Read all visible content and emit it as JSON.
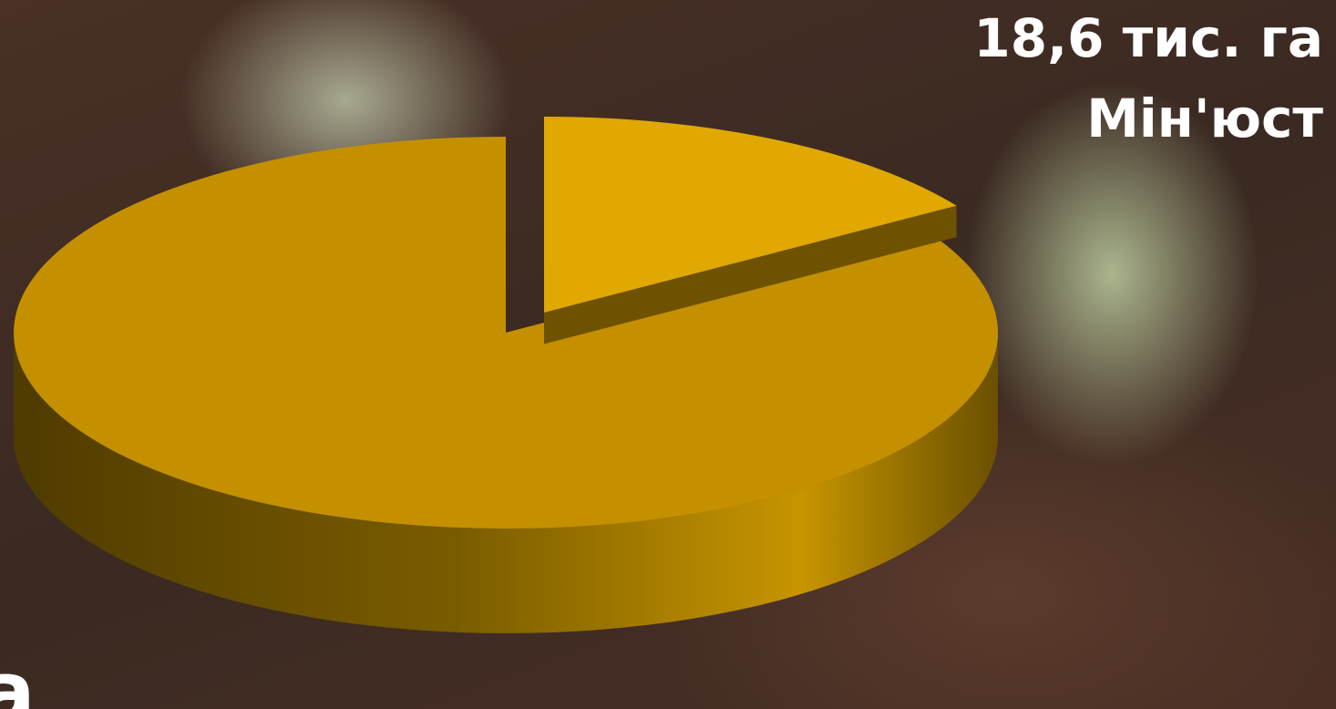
{
  "chart_data": {
    "type": "pie",
    "categories": [
      "Мін'юст",
      null
    ],
    "values": [
      18.6,
      99
    ],
    "value_labels": [
      "18,6 тис. га",
      null
    ],
    "colors": [
      "#e0a800",
      "#c49000"
    ],
    "annotations": [
      "а"
    ]
  }
}
